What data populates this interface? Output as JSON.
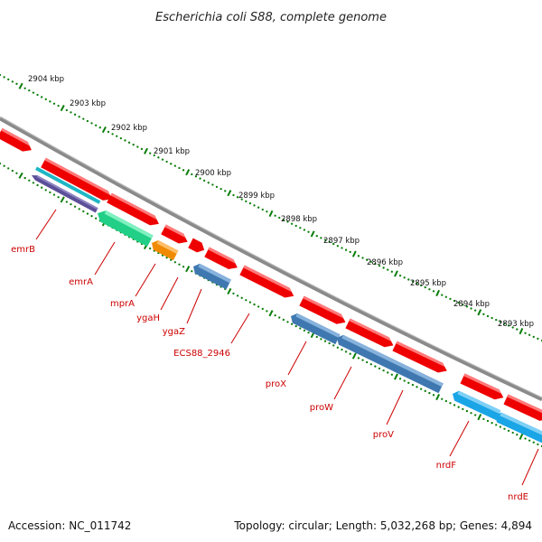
{
  "title": "Escherichia coli S88, complete genome",
  "footer": {
    "accession": "Accession: NC_011742",
    "summary": "Topology: circular; Length: 5,032,268 bp; Genes: 4,894"
  },
  "colors": {
    "backbone": "#808080",
    "tick": "#0a7d0a",
    "label": "#cc0000",
    "forward": "#ee0000",
    "reverse_blue": "#3f78b0",
    "reverse_green": "#21cf87",
    "reverse_orange": "#f08a00",
    "reverse_cyan": "#1aa5e6",
    "reverse_purple": "#5b4f98",
    "reverse_teal": "#1fb7c5"
  },
  "kbp_ticks": [
    "2904 kbp",
    "2903 kbp",
    "2902 kbp",
    "2901 kbp",
    "2900 kbp",
    "2899 kbp",
    "2898 kbp",
    "2897 kbp",
    "2896 kbp",
    "2895 kbp",
    "2894 kbp",
    "2893 kbp"
  ],
  "gene_labels": [
    "emrB",
    "emrA",
    "mprA",
    "ygaH",
    "ygaZ",
    "ECS88_2946",
    "proX",
    "proW",
    "proV",
    "nrdF",
    "nrdE"
  ]
}
